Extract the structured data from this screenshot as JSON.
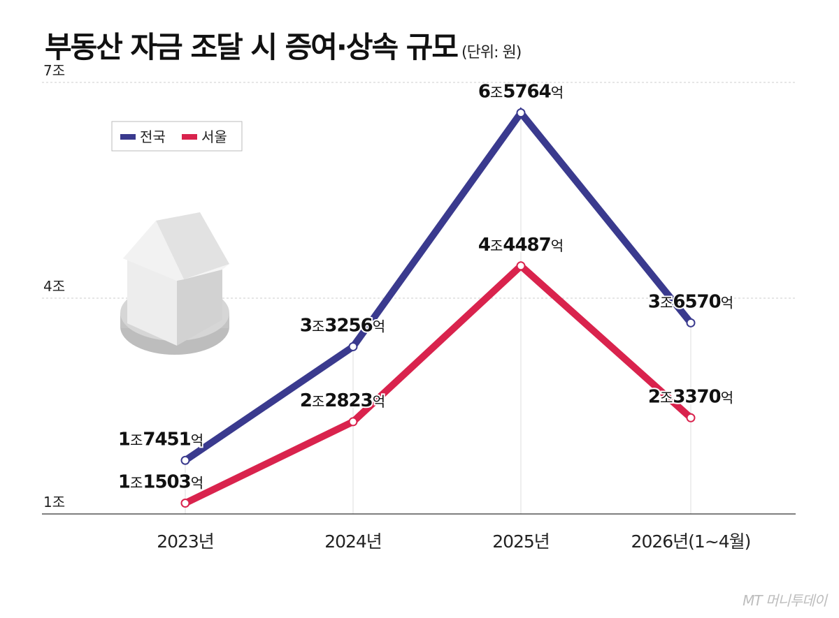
{
  "title": "부동산 자금 조달 시 증여·상속 규모",
  "unit_label": "(단위: 원)",
  "source": "MT 머니투데이",
  "colors": {
    "national": "#3a3a8e",
    "seoul": "#d9234d",
    "grid": "#cccccc",
    "axis": "#333333"
  },
  "chart_data": {
    "type": "line",
    "title": "부동산 자금 조달 시 증여·상속 규모",
    "unit": "원",
    "categories": [
      "2023년",
      "2024년",
      "2025년",
      "2026년(1~4월)"
    ],
    "y_ticks": [
      "1조",
      "4조",
      "7조"
    ],
    "y_tick_values": [
      10000,
      40000,
      70000
    ],
    "ylim": [
      10000,
      70000
    ],
    "value_unit": "억",
    "legend_position": "top-left",
    "series": [
      {
        "name": "전국",
        "color": "#3a3a8e",
        "values": [
          17451,
          33256,
          65764,
          36570
        ],
        "labels": [
          [
            "1",
            "조",
            "7451",
            "억"
          ],
          [
            "3",
            "조",
            "3256",
            "억"
          ],
          [
            "6",
            "조",
            "5764",
            "억"
          ],
          [
            "3",
            "조",
            "6570",
            "억"
          ]
        ]
      },
      {
        "name": "서울",
        "color": "#d9234d",
        "values": [
          11503,
          22823,
          44487,
          23370
        ],
        "labels": [
          [
            "1",
            "조",
            "1503",
            "억"
          ],
          [
            "2",
            "조",
            "2823",
            "억"
          ],
          [
            "4",
            "조",
            "4487",
            "억"
          ],
          [
            "2",
            "조",
            "3370",
            "억"
          ]
        ]
      }
    ]
  }
}
